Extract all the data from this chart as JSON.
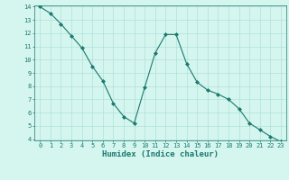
{
  "x": [
    0,
    1,
    2,
    3,
    4,
    5,
    6,
    7,
    8,
    9,
    10,
    11,
    12,
    13,
    14,
    15,
    16,
    17,
    18,
    19,
    20,
    21,
    22,
    23
  ],
  "y": [
    14.0,
    13.5,
    12.7,
    11.8,
    10.9,
    9.5,
    8.4,
    6.7,
    5.7,
    5.2,
    7.9,
    10.5,
    11.9,
    11.9,
    9.7,
    8.3,
    7.7,
    7.4,
    7.0,
    6.3,
    5.2,
    4.7,
    4.2,
    3.8
  ],
  "line_color": "#1a7a6e",
  "marker": "D",
  "marker_size": 2.0,
  "bg_color": "#d5f5ef",
  "grid_color": "#a8ddd6",
  "xlabel": "Humidex (Indice chaleur)",
  "ylim": [
    4,
    14
  ],
  "xlim": [
    -0.5,
    23.5
  ],
  "yticks": [
    4,
    5,
    6,
    7,
    8,
    9,
    10,
    11,
    12,
    13,
    14
  ],
  "xticks": [
    0,
    1,
    2,
    3,
    4,
    5,
    6,
    7,
    8,
    9,
    10,
    11,
    12,
    13,
    14,
    15,
    16,
    17,
    18,
    19,
    20,
    21,
    22,
    23
  ],
  "tick_label_fontsize": 5.0,
  "xlabel_fontsize": 6.5,
  "linewidth": 0.8
}
